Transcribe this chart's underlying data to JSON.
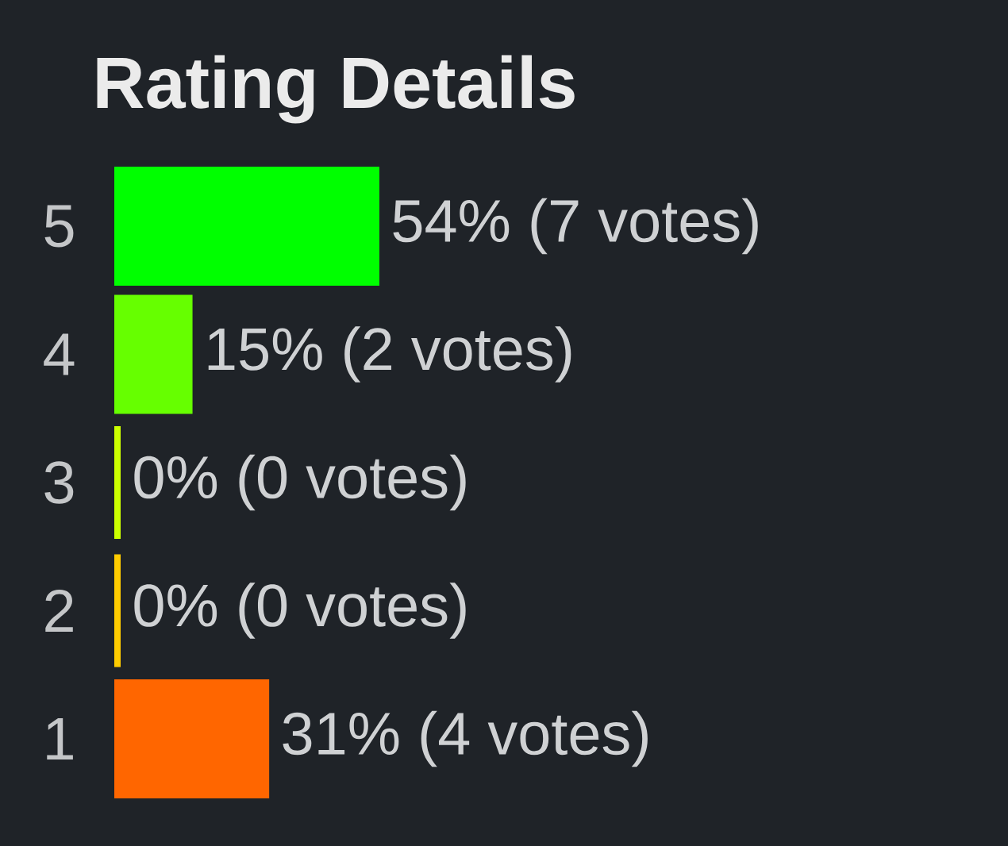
{
  "chart_data": {
    "type": "bar",
    "orientation": "horizontal",
    "title": "Rating Details",
    "categories": [
      "5",
      "4",
      "3",
      "2",
      "1"
    ],
    "values": [
      54,
      15,
      0,
      0,
      31
    ],
    "colors": [
      "#00ff00",
      "#66ff00",
      "#ccff00",
      "#ffcc00",
      "#ff6600"
    ],
    "value_labels": [
      "54% (7 votes)",
      "15% (2 votes)",
      "0% (0 votes)",
      "0% (0 votes)",
      "31% (4 votes)"
    ]
  }
}
